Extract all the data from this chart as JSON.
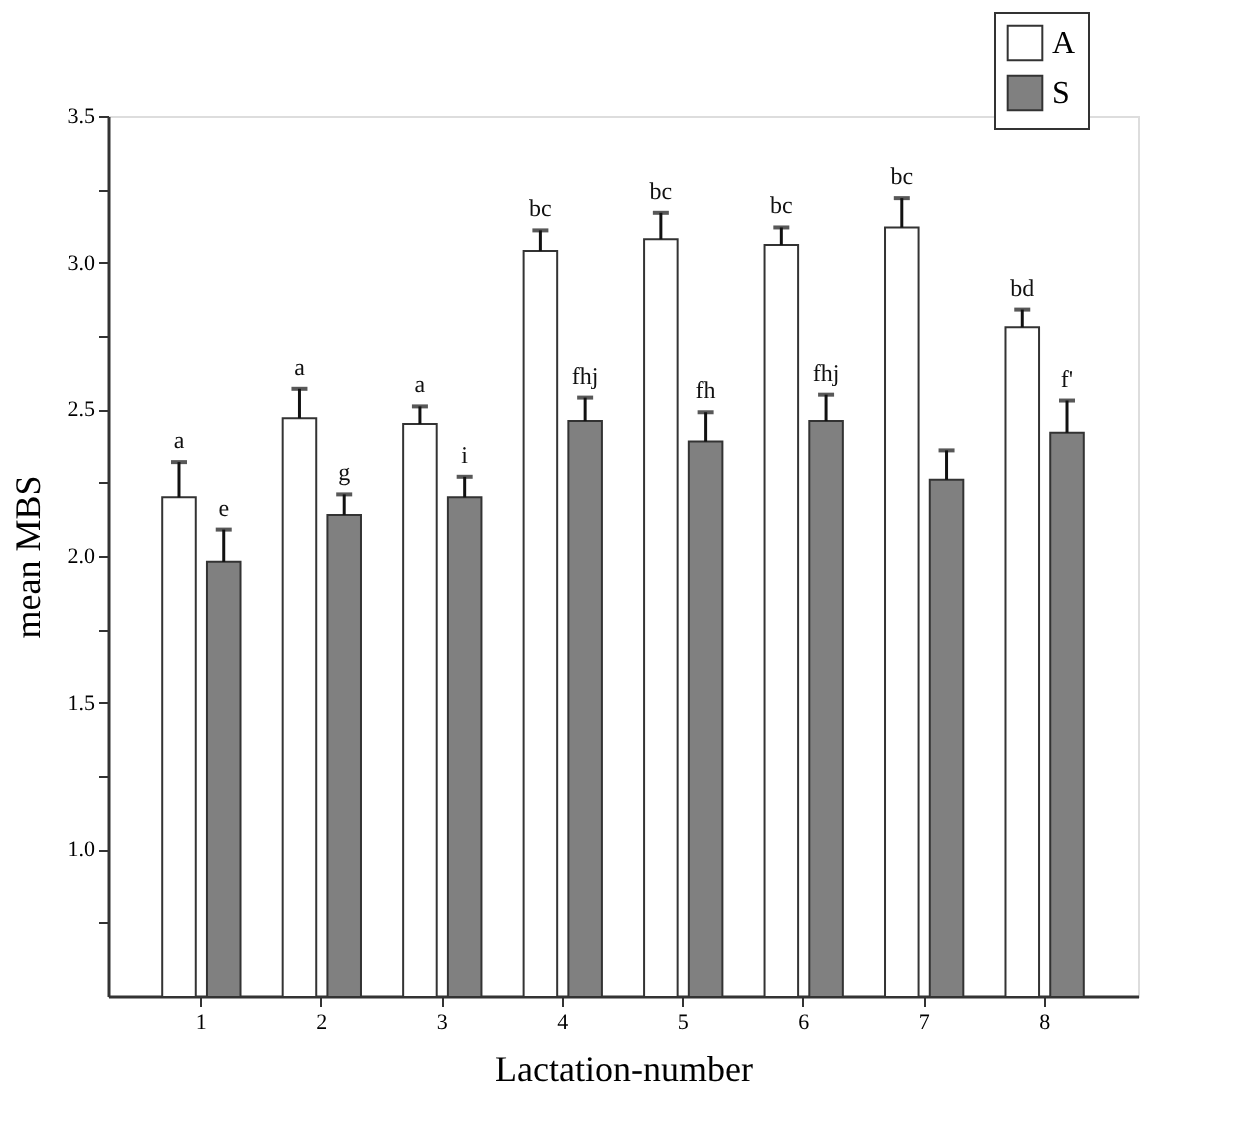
{
  "chart_data": {
    "type": "bar",
    "xlabel": "Lactation-number",
    "ylabel": "mean MBS",
    "categories": [
      "1",
      "2",
      "3",
      "4",
      "5",
      "6",
      "7",
      "8"
    ],
    "series": [
      {
        "name": "A",
        "color": "#ffffff",
        "values": [
          2.2,
          2.47,
          2.45,
          3.04,
          3.08,
          3.06,
          3.12,
          2.78
        ],
        "errors": [
          [
            2.2,
            2.32
          ],
          [
            2.47,
            2.57
          ],
          [
            2.45,
            2.51
          ],
          [
            3.04,
            3.11
          ],
          [
            3.08,
            3.17
          ],
          [
            3.06,
            3.12
          ],
          [
            3.12,
            3.22
          ],
          [
            2.78,
            2.84
          ]
        ],
        "value_labels": [
          "a",
          "a",
          "a",
          "bc",
          "bc",
          "bc",
          "bc",
          "bd"
        ]
      },
      {
        "name": "S",
        "color": "#808080",
        "values": [
          1.98,
          2.14,
          2.2,
          2.46,
          2.39,
          2.46,
          2.26,
          2.42
        ],
        "errors": [
          [
            1.98,
            2.09
          ],
          [
            2.14,
            2.21
          ],
          [
            2.2,
            2.27
          ],
          [
            2.46,
            2.54
          ],
          [
            2.39,
            2.49
          ],
          [
            2.46,
            2.55
          ],
          [
            2.26,
            2.36
          ],
          [
            2.42,
            2.53
          ]
        ],
        "value_labels": [
          "e",
          "g",
          "i",
          "fhj",
          "fh",
          "fhj",
          null,
          "f'"
        ]
      }
    ],
    "ylim": [
      0.5,
      3.5
    ],
    "yticks": [
      {
        "value": 0.75,
        "label": null
      },
      {
        "value": 1.0,
        "label": "1.0"
      },
      {
        "value": 1.25,
        "label": null
      },
      {
        "value": 1.5,
        "label": "1.5"
      },
      {
        "value": 1.75,
        "label": null
      },
      {
        "value": 2.0,
        "label": "2.0"
      },
      {
        "value": 2.25,
        "label": null
      },
      {
        "value": 2.5,
        "label": "2.5"
      },
      {
        "value": 2.75,
        "label": null
      },
      {
        "value": 3.0,
        "label": "3.0"
      },
      {
        "value": 3.25,
        "label": null
      },
      {
        "value": 3.5,
        "label": "3.5"
      }
    ],
    "grid": false,
    "legend": "top right"
  }
}
